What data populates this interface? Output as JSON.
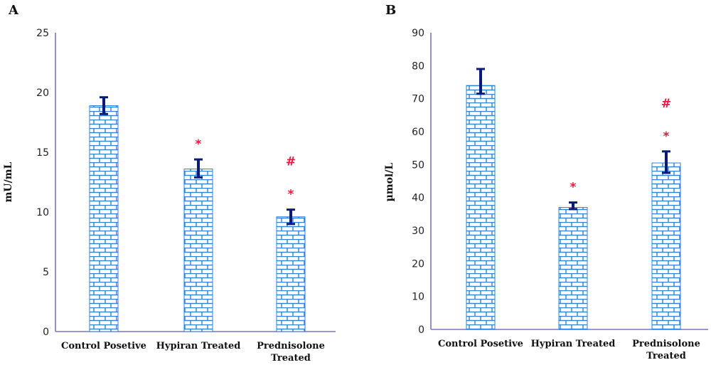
{
  "chart_data": [
    {
      "type": "bar",
      "panel_label": "A",
      "ylabel": "mU/mL",
      "ylim": [
        0,
        25
      ],
      "yticks": [
        "0",
        "5",
        "10",
        "15",
        "20",
        "25"
      ],
      "categories": [
        "Control Posetive",
        "Hypiran Treated",
        "Prednisolone Treated"
      ],
      "values": [
        18.9,
        13.6,
        9.6
      ],
      "error_upper": [
        19.6,
        14.4,
        10.2
      ],
      "error_lower": [
        18.2,
        12.9,
        9.0
      ],
      "significance": [
        [],
        [
          "*"
        ],
        [
          "*",
          "#"
        ]
      ],
      "grid": false,
      "bar_color": "#2f7fd8",
      "error_color": "#0a1a7a",
      "axis_color": "#7b73c2",
      "significance_color": "#e8193c"
    },
    {
      "type": "bar",
      "panel_label": "B",
      "ylabel": "µmol/L",
      "ylim": [
        0,
        90
      ],
      "yticks": [
        "0",
        "10",
        "20",
        "30",
        "40",
        "50",
        "60",
        "70",
        "80",
        "90"
      ],
      "categories": [
        "Control Posetive",
        "Hypiran Treated",
        "Prednisolone Treated"
      ],
      "values": [
        74.0,
        37.0,
        50.5
      ],
      "error_upper": [
        79.0,
        38.5,
        54.0
      ],
      "error_lower": [
        71.5,
        36.5,
        47.5
      ],
      "significance": [
        [],
        [
          "*"
        ],
        [
          "*",
          "#"
        ]
      ],
      "grid": false,
      "bar_color": "#2f7fd8",
      "error_color": "#0a1a7a",
      "axis_color": "#7b73c2",
      "significance_color": "#e8193c"
    }
  ]
}
